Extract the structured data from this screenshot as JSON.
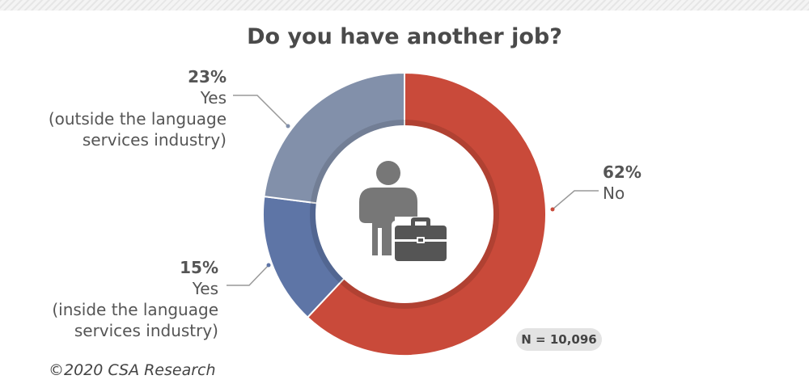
{
  "chart_data": {
    "type": "pie",
    "title": "Do you have another job?",
    "slices": [
      {
        "value": 62,
        "pct_label": "62%",
        "label_lines": [
          "No"
        ],
        "color": "#c94a3a"
      },
      {
        "value": 15,
        "pct_label": "15%",
        "label_lines": [
          "Yes",
          "(inside the language",
          "services industry)"
        ],
        "color": "#5e75a6"
      },
      {
        "value": 23,
        "pct_label": "23%",
        "label_lines": [
          "Yes",
          "(outside the language",
          "services industry)"
        ],
        "color": "#8290aa"
      }
    ],
    "note": "N = 10,096"
  },
  "icon": "person-with-briefcase-icon",
  "copyright": "©2020 CSA Research"
}
